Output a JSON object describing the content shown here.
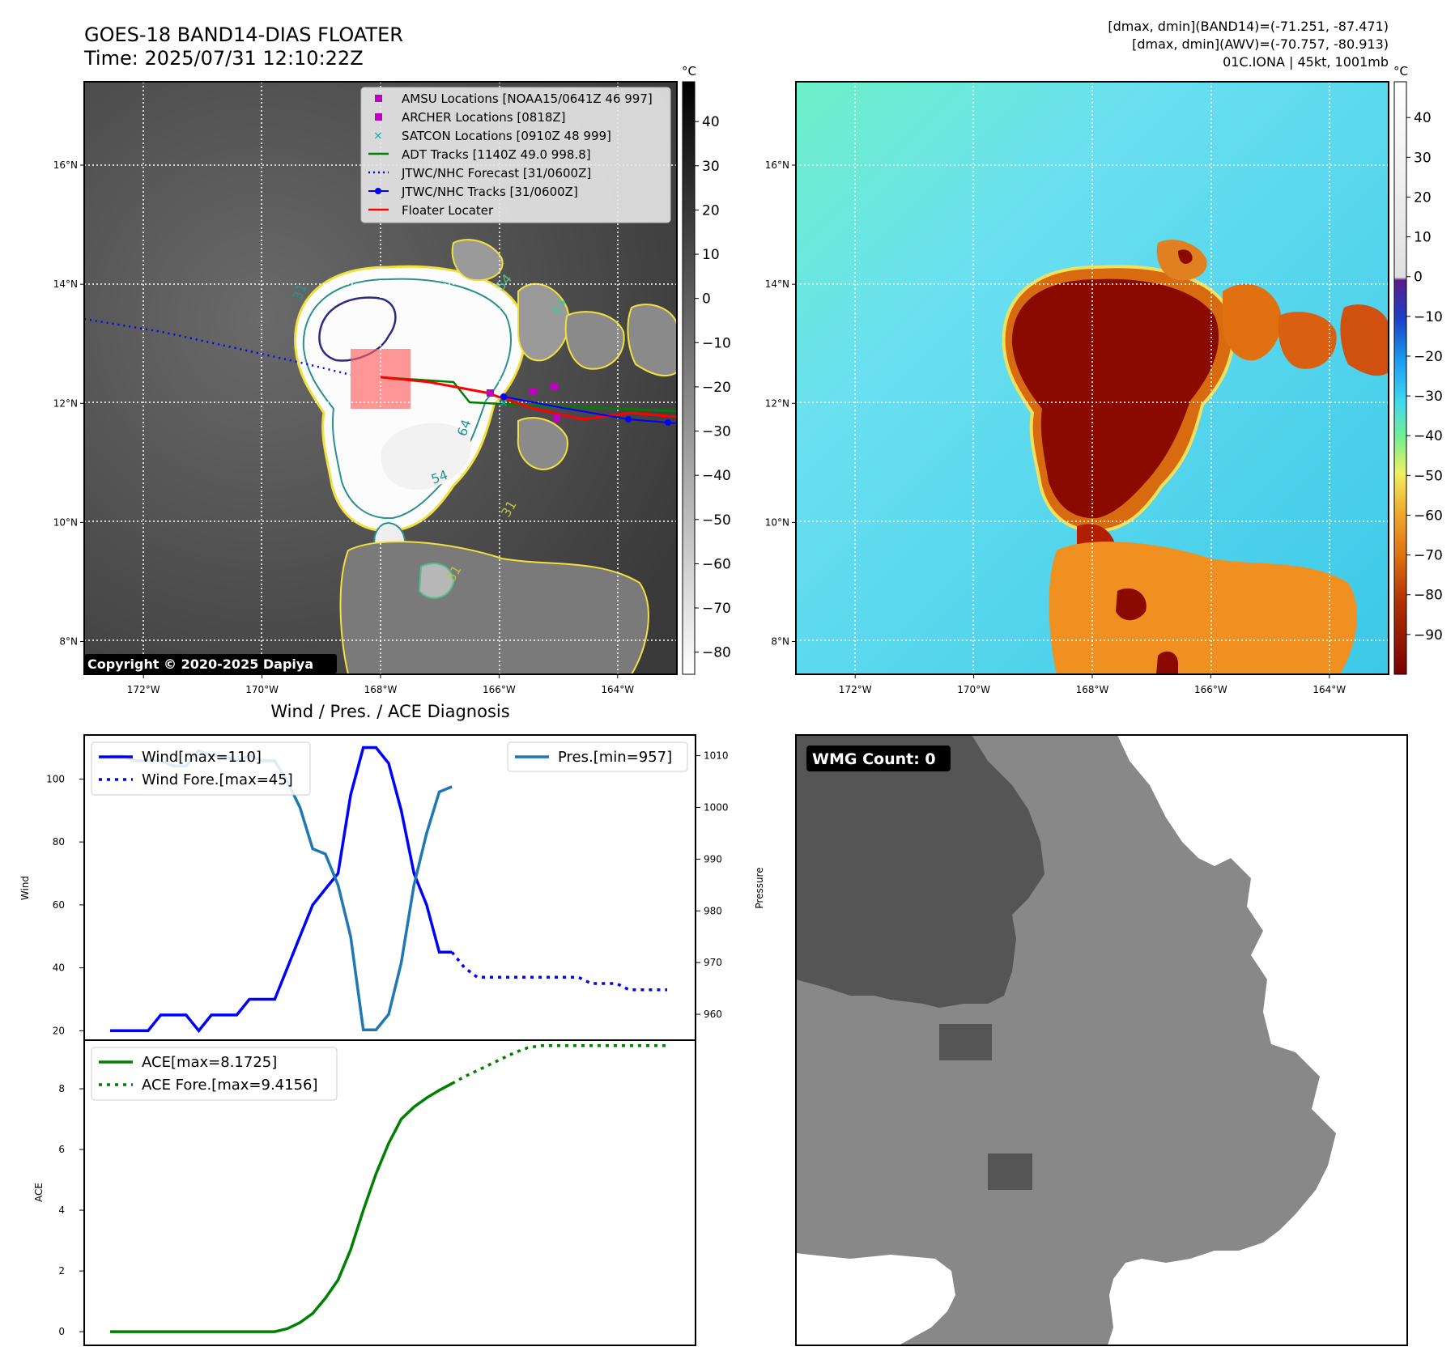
{
  "header": {
    "title": "GOES-18 BAND14-DIAS FLOATER",
    "time": "Time: 2025/07/31 12:10:22Z",
    "stats_line1": "[dmax, dmin](BAND14)=(-71.251, -87.471)",
    "stats_line2": "[dmax, dmin](AWV)=(-70.757, -80.913)",
    "storm_line": "01C.IONA | 45kt, 1001mb"
  },
  "map_axes": {
    "lat_labels": [
      "16°N",
      "14°N",
      "12°N",
      "10°N",
      "8°N"
    ],
    "lat_values": [
      16,
      14,
      12,
      10,
      8
    ],
    "lon_labels": [
      "172°W",
      "170°W",
      "168°W",
      "166°W",
      "164°W"
    ],
    "lon_values": [
      -172,
      -170,
      -168,
      -166,
      -164
    ],
    "lat_range": [
      7.45,
      17.4
    ],
    "lon_range": [
      -173,
      -163
    ]
  },
  "ir_panel": {
    "copyright": "Copyright © 2020-2025 Dapiya",
    "contour_labels": [
      "31",
      "54",
      "64",
      "31",
      "54",
      "64",
      "31"
    ],
    "legend": [
      {
        "label": "AMSU Locations [NOAA15/0641Z 46 997]",
        "marker": "square",
        "color": "#c000c0"
      },
      {
        "label": "ARCHER Locations [0818Z]",
        "marker": "square",
        "color": "#c000c0"
      },
      {
        "label": "SATCON Locations [0910Z 48 999]",
        "marker": "x",
        "color": "#00b0b0"
      },
      {
        "label": "ADT Tracks [1140Z 49.0 998.8]",
        "marker": "line",
        "color": "#008000"
      },
      {
        "label": "JTWC/NHC Forecast [31/0600Z]",
        "marker": "dotted",
        "color": "#0000ff"
      },
      {
        "label": "JTWC/NHC Tracks [31/0600Z]",
        "marker": "line-dot",
        "color": "#0000ff"
      },
      {
        "label": "Floater Locater",
        "marker": "line",
        "color": "#ff0000"
      }
    ],
    "colorbar": {
      "unit": "°C",
      "ticks": [
        40,
        30,
        20,
        10,
        0,
        -10,
        -20,
        -30,
        -40,
        -50,
        -60,
        -70,
        -80
      ],
      "range": [
        -85,
        49
      ]
    }
  },
  "awv_panel": {
    "colorbar": {
      "unit": "°C",
      "ticks": [
        40,
        30,
        20,
        10,
        0,
        -10,
        -20,
        -30,
        -40,
        -50,
        -60,
        -70,
        -80,
        -90
      ],
      "range": [
        -100,
        49
      ]
    }
  },
  "wmg_panel": {
    "badge": "WMG Count: 0"
  },
  "colors": {
    "wind": "#0000ff",
    "pressure": "#1f77b4",
    "ace": "#008000",
    "track_red": "#ff0000"
  },
  "chart_data": [
    {
      "type": "line",
      "title": "Wind / Pres. / ACE Diagnosis",
      "ylabel": "Wind",
      "y2label": "Pressure",
      "ylim": [
        17,
        114
      ],
      "y2lim": [
        955,
        1014
      ],
      "yticks": [
        20,
        40,
        60,
        80,
        100
      ],
      "y2ticks": [
        960,
        970,
        980,
        990,
        1000,
        1010
      ],
      "series": [
        {
          "name": "Wind[max=110]",
          "axis": "left",
          "style": "solid",
          "values": [
            20,
            20,
            20,
            20,
            25,
            25,
            25,
            20,
            25,
            25,
            25,
            30,
            30,
            30,
            40,
            50,
            60,
            65,
            70,
            95,
            110,
            110,
            105,
            90,
            70,
            60,
            45,
            45
          ]
        },
        {
          "name": "Wind Fore.[max=45]",
          "axis": "left",
          "style": "dotted",
          "values": [
            45,
            40,
            37,
            37,
            37,
            37,
            37,
            37,
            37,
            37,
            37,
            35,
            35,
            35,
            33,
            33,
            33,
            33
          ]
        },
        {
          "name": "Pres.[min=957]",
          "axis": "right",
          "style": "solid",
          "values": [
            1010,
            1010,
            1009,
            1009,
            1009,
            1008,
            1008,
            1011,
            1010,
            1010,
            1009,
            1010,
            1009,
            1009,
            1005,
            1000,
            992,
            991,
            985,
            975,
            957,
            957,
            960,
            970,
            985,
            995,
            1003,
            1004
          ]
        }
      ],
      "legend": [
        "Wind[max=110]",
        "Wind Fore.[max=45]",
        "Pres.[min=957]"
      ]
    },
    {
      "type": "line",
      "ylabel": "ACE",
      "ylim": [
        -0.45,
        9.6
      ],
      "yticks": [
        0,
        2,
        4,
        6,
        8
      ],
      "series": [
        {
          "name": "ACE[max=8.1725]",
          "style": "solid",
          "values": [
            0,
            0,
            0,
            0,
            0,
            0,
            0,
            0,
            0,
            0,
            0,
            0,
            0,
            0,
            0.1,
            0.3,
            0.6,
            1.1,
            1.7,
            2.7,
            4.0,
            5.2,
            6.2,
            7.0,
            7.4,
            7.7,
            7.95,
            8.17
          ]
        },
        {
          "name": "ACE Fore.[max=9.4156]",
          "style": "dotted",
          "values": [
            8.17,
            8.4,
            8.6,
            8.8,
            9.0,
            9.2,
            9.35,
            9.42,
            9.42,
            9.42,
            9.42,
            9.42,
            9.42,
            9.42,
            9.42,
            9.42,
            9.42,
            9.42
          ]
        }
      ],
      "legend": [
        "ACE[max=8.1725]",
        "ACE Fore.[max=9.4156]"
      ]
    }
  ]
}
